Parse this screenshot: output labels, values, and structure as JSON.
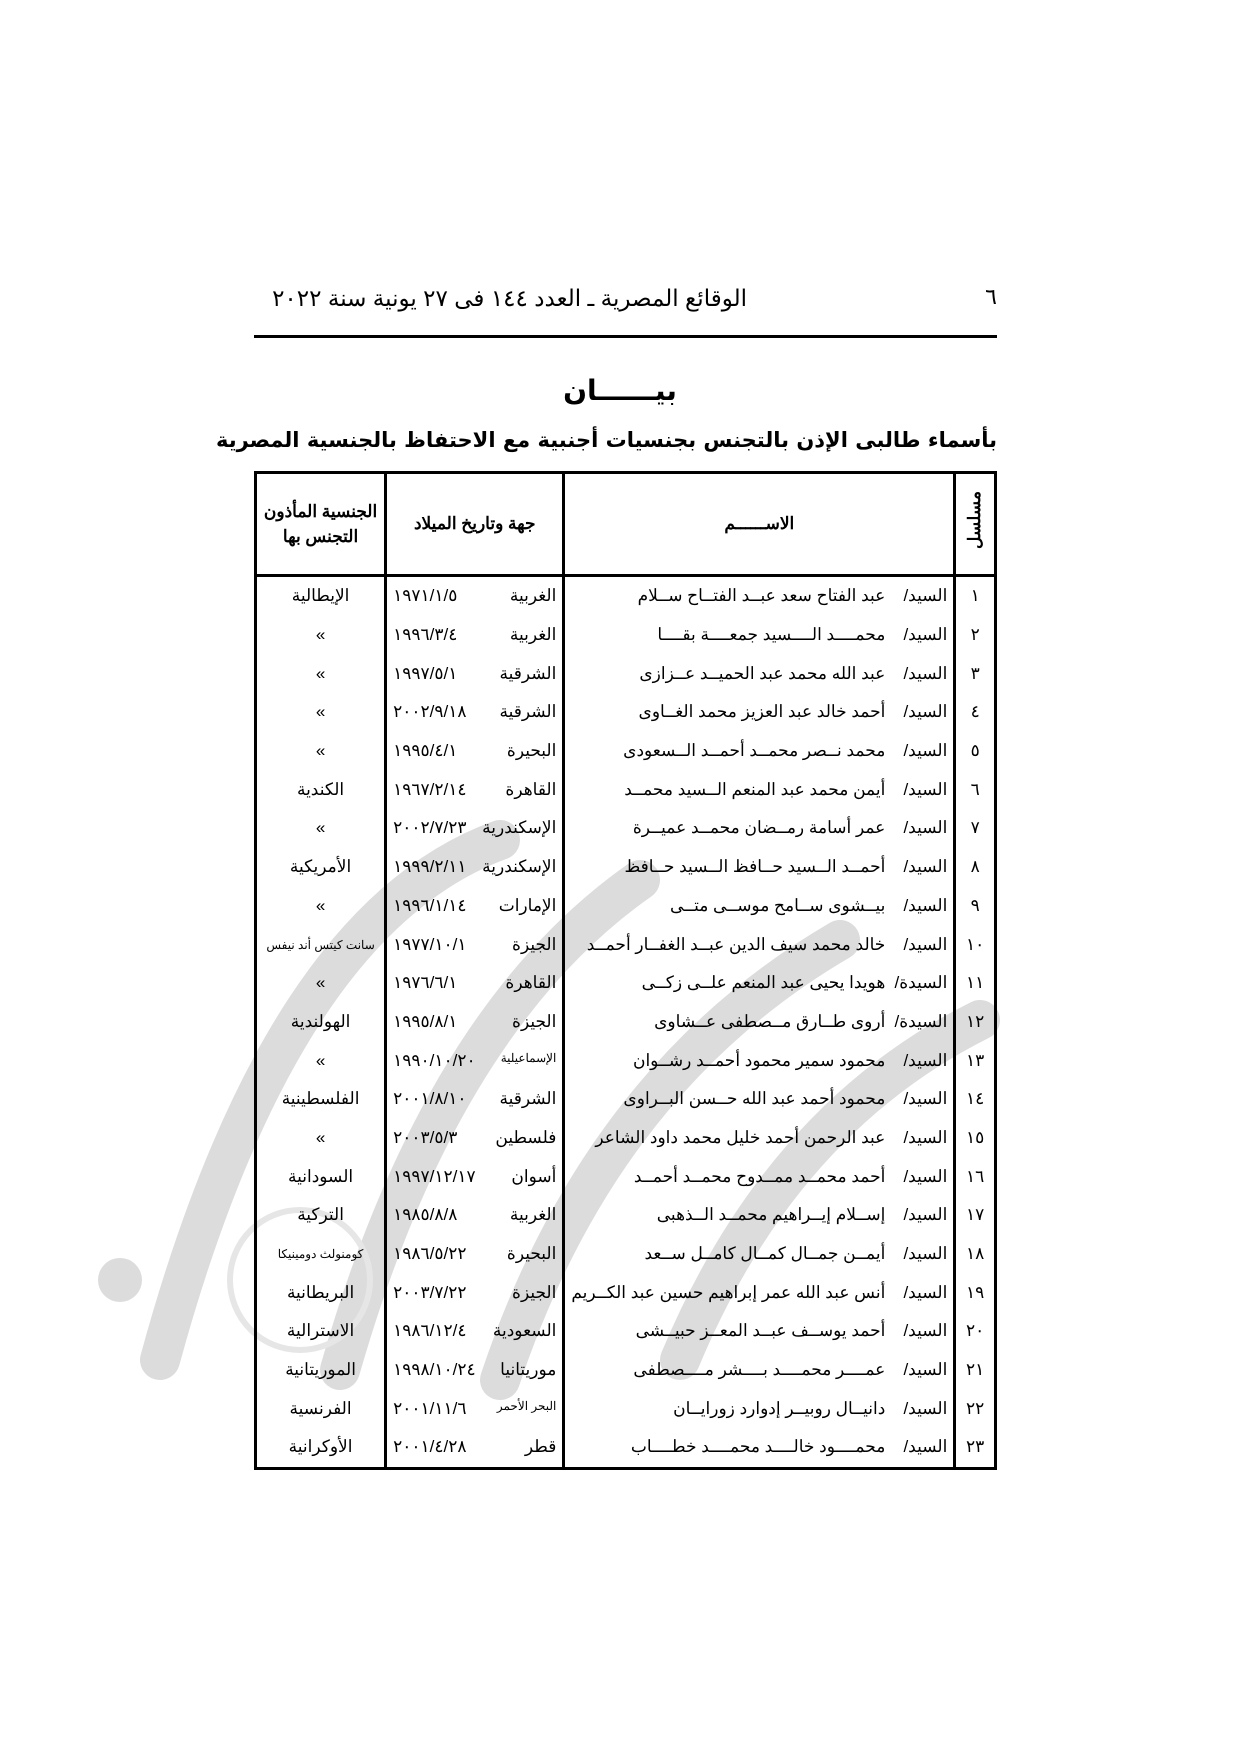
{
  "header": {
    "page_number": "٦",
    "running_title": "الوقائع المصرية ـ العدد ١٤٤ فى ٢٧ يونية سنة ٢٠٢٢"
  },
  "title": "بيــــــان",
  "subtitle": "بأسماء طالبى الإذن بالتجنس بجنسيات أجنبية مع الاحتفاظ بالجنسية المصرية",
  "table": {
    "columns": {
      "serial": "مسلسل",
      "name": "الاســــــم",
      "place_date": "جهة وتاريخ الميلاد",
      "nationality": "الجنسية المأذون التجنس بها"
    },
    "rows": [
      {
        "serial": "١",
        "title": "السيد/",
        "name": "عبد الفتاح سعد عبــد الفتــاح ســلام",
        "place": "الغربية",
        "date": "١٩٧١/١/٥",
        "nationality": "الإيطالية"
      },
      {
        "serial": "٢",
        "title": "السيد/",
        "name": "محمــــد الــــسيد جمعــــة بقــــا",
        "place": "الغربية",
        "date": "١٩٩٦/٣/٤",
        "nationality": "»"
      },
      {
        "serial": "٣",
        "title": "السيد/",
        "name": "عبد الله محمد عبد الحميــد عــزازى",
        "place": "الشرقية",
        "date": "١٩٩٧/٥/١",
        "nationality": "»"
      },
      {
        "serial": "٤",
        "title": "السيد/",
        "name": "أحمد خالد عبد العزيز محمد الغــاوى",
        "place": "الشرقية",
        "date": "٢٠٠٢/٩/١٨",
        "nationality": "»"
      },
      {
        "serial": "٥",
        "title": "السيد/",
        "name": "محمد نــصر محمــد أحمــد الــسعودى",
        "place": "البحيرة",
        "date": "١٩٩٥/٤/١",
        "nationality": "»"
      },
      {
        "serial": "٦",
        "title": "السيد/",
        "name": "أيمن محمد عبد المنعم الــسيد محمــد",
        "place": "القاهرة",
        "date": "١٩٦٧/٢/١٤",
        "nationality": "الكندية"
      },
      {
        "serial": "٧",
        "title": "السيد/",
        "name": "عمر أسامة رمــضان محمــد عميــرة",
        "place": "الإسكندرية",
        "date": "٢٠٠٢/٧/٢٣",
        "nationality": "»"
      },
      {
        "serial": "٨",
        "title": "السيد/",
        "name": "أحمــد الــسيد حــافظ الــسيد حــافظ",
        "place": "الإسكندرية",
        "date": "١٩٩٩/٢/١١",
        "nationality": "الأمريكية"
      },
      {
        "serial": "٩",
        "title": "السيد/",
        "name": "بيــشوى ســامح موســى متــى",
        "place": "الإمارات",
        "date": "١٩٩٦/١/١٤",
        "nationality": "»"
      },
      {
        "serial": "١٠",
        "title": "السيد/",
        "name": "خالد محمد سيف الدين عبــد الغفــار أحمــد",
        "place": "الجيزة",
        "date": "١٩٧٧/١٠/١",
        "nationality": "سانت كيتس أند نيفس"
      },
      {
        "serial": "١١",
        "title": "السيدة/",
        "name": "هويدا يحيى عبد المنعم علــى زكــى",
        "place": "القاهرة",
        "date": "١٩٧٦/٦/١",
        "nationality": "»"
      },
      {
        "serial": "١٢",
        "title": "السيدة/",
        "name": "أروى طــارق مــصطفى عــشاوى",
        "place": "الجيزة",
        "date": "١٩٩٥/٨/١",
        "nationality": "الهولندية"
      },
      {
        "serial": "١٣",
        "title": "السيد/",
        "name": "محمود سمير محمود أحمــد رشــوان",
        "place": "الإسماعيلية",
        "date": "١٩٩٠/١٠/٢٠",
        "nationality": "»"
      },
      {
        "serial": "١٤",
        "title": "السيد/",
        "name": "محمود أحمد عبد الله حــسن البــراوى",
        "place": "الشرقية",
        "date": "٢٠٠١/٨/١٠",
        "nationality": "الفلسطينية"
      },
      {
        "serial": "١٥",
        "title": "السيد/",
        "name": "عبد الرحمن أحمد خليل محمد داود الشاعر",
        "place": "فلسطين",
        "date": "٢٠٠٣/٥/٣",
        "nationality": "»"
      },
      {
        "serial": "١٦",
        "title": "السيد/",
        "name": "أحمد محمــد ممــدوح محمــد أحمــد",
        "place": "أسوان",
        "date": "١٩٩٧/١٢/١٧",
        "nationality": "السودانية"
      },
      {
        "serial": "١٧",
        "title": "السيد/",
        "name": "إســلام إيــراهيم محمــد الــذهبى",
        "place": "الغربية",
        "date": "١٩٨٥/٨/٨",
        "nationality": "التركية"
      },
      {
        "serial": "١٨",
        "title": "السيد/",
        "name": "أيمــن جمــال كمــال كامــل ســعد",
        "place": "البحيرة",
        "date": "١٩٨٦/٥/٢٢",
        "nationality": "كومنولث دومينيكا"
      },
      {
        "serial": "١٩",
        "title": "السيد/",
        "name": "أنس عبد الله عمر إبراهيم حسين عبد الكــريم",
        "place": "الجيزة",
        "date": "٢٠٠٣/٧/٢٢",
        "nationality": "البريطانية"
      },
      {
        "serial": "٢٠",
        "title": "السيد/",
        "name": "أحمد يوســف عبــد المعــز حبيــشى",
        "place": "السعودية",
        "date": "١٩٨٦/١٢/٤",
        "nationality": "الاسترالية"
      },
      {
        "serial": "٢١",
        "title": "السيد/",
        "name": "عمــــر محمــــد بــــشر مــــصطفى",
        "place": "موريتانيا",
        "date": "١٩٩٨/١٠/٢٤",
        "nationality": "الموريتانية"
      },
      {
        "serial": "٢٢",
        "title": "السيد/",
        "name": "دانيــال روبيــر إدوارد زورايــان",
        "place": "البحر الأحمر",
        "date": "٢٠٠١/١١/٦",
        "nationality": "الفرنسية"
      },
      {
        "serial": "٢٣",
        "title": "السيد/",
        "name": "محمــــود خالــــد محمــــد خطــــاب",
        "place": "قطر",
        "date": "٢٠٠١/٤/٢٨",
        "nationality": "الأوكرانية"
      }
    ]
  },
  "colors": {
    "text": "#000000",
    "watermark": "#d9d9d9"
  }
}
